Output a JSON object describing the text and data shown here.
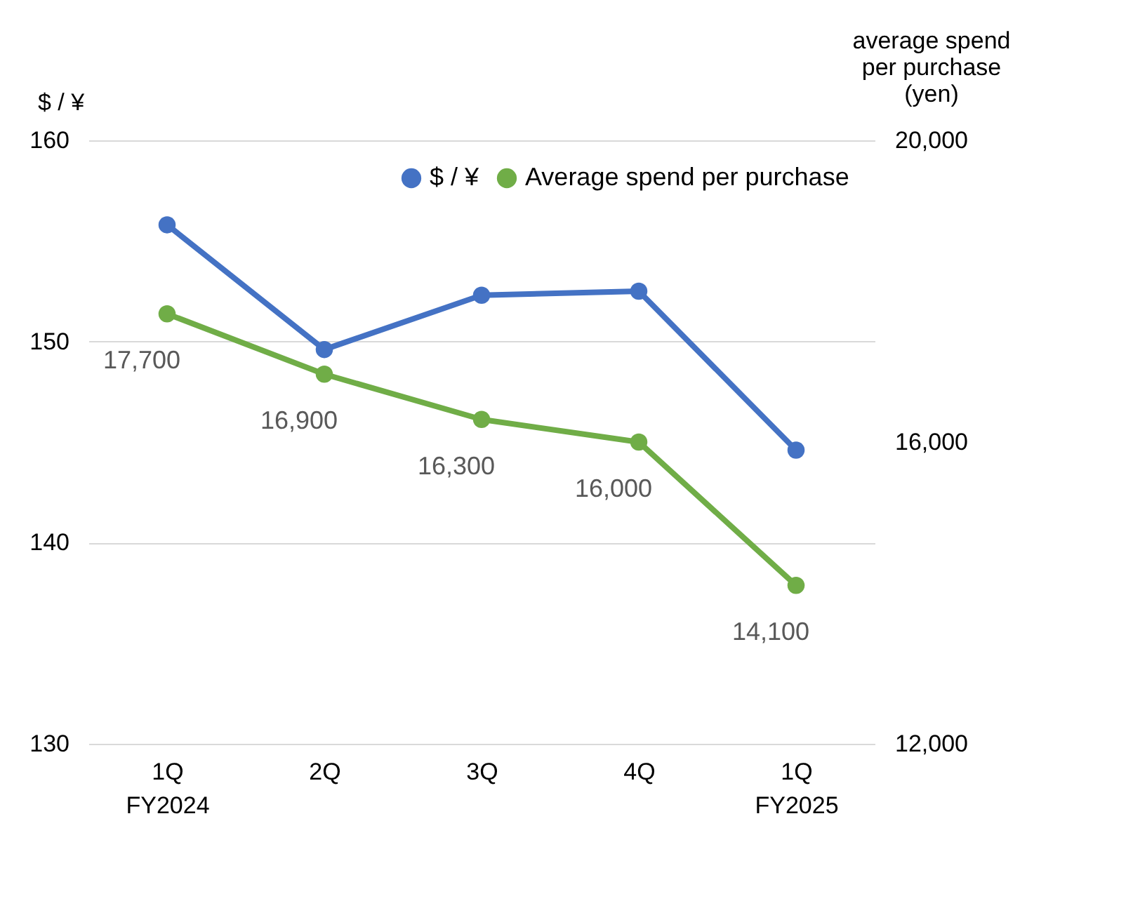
{
  "chart_data": {
    "type": "line",
    "categories": [
      "1Q\nFY2024",
      "2Q",
      "3Q",
      "4Q",
      "1Q\nFY2025"
    ],
    "ylabel": "$ / ¥",
    "y2label": "average spend\nper purchase\n(yen)",
    "ylim": [
      130,
      160
    ],
    "yticks": [
      130,
      140,
      150,
      160
    ],
    "y2lim": [
      12000,
      20000
    ],
    "y2ticks": [
      {
        "value": 12000,
        "label": "12,000"
      },
      {
        "value": 16000,
        "label": "16,000"
      },
      {
        "value": 20000,
        "label": "20,000"
      }
    ],
    "grid": "y",
    "legend": "top right",
    "marker": "circle",
    "line_style": "solid",
    "series": [
      {
        "name": "$ / ¥",
        "color": "#4472c4",
        "values": [
          155.8,
          149.6,
          152.3,
          152.5,
          144.6
        ]
      },
      {
        "name": "Average spend per purchase",
        "color": "#70ad47",
        "axis": "y2",
        "values": [
          17700,
          16900,
          16300,
          16000,
          14100
        ],
        "value_labels": [
          "17,700",
          "16,900",
          "16,300",
          "16,000",
          "14,100"
        ]
      }
    ]
  }
}
